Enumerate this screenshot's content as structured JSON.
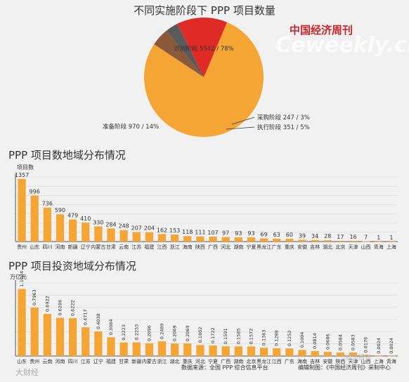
{
  "watermark": {
    "publisher": "中国经济周刊",
    "domain": "Ceweekly.cn",
    "bottom_left": "大财经",
    "mid_right": "经济周刊"
  },
  "colors": {
    "bar": "#f5a534",
    "grid": "#dcdcdc",
    "axis": "#555555",
    "pie_main": "#f5a534",
    "pie_prep": "#e02a26",
    "pie_purchase": "#5a5a5a",
    "pie_exec": "#8a5a3a"
  },
  "chart_data": [
    {
      "type": "pie",
      "title": "不同实施阶段下 PPP 项目数量",
      "slices": [
        {
          "label": "识别阶段",
          "value": 5542,
          "pct": "78%",
          "text": "识别阶段 5542 / 78%"
        },
        {
          "label": "准备阶段",
          "value": 970,
          "pct": "14%",
          "text": "准备阶段 970 / 14%"
        },
        {
          "label": "执行阶段",
          "value": 351,
          "pct": "5%",
          "text": "执行阶段 351 / 5%"
        },
        {
          "label": "采购阶段",
          "value": 247,
          "pct": "3%",
          "text": "采购阶段 247 / 3%"
        }
      ]
    },
    {
      "type": "bar",
      "title": "PPP 项目数地域分布情况",
      "ylabel": "项目数",
      "ylim": [
        0,
        1400
      ],
      "categories": [
        "贵州",
        "山东",
        "四川",
        "河南",
        "新疆",
        "辽宁",
        "内蒙古",
        "甘肃",
        "云南",
        "江苏",
        "福建",
        "江西",
        "浙江",
        "海南",
        "陕西",
        "广西",
        "河北",
        "湖南",
        "宁夏",
        "黑龙江",
        "广东",
        "重庆",
        "安徽",
        "吉林",
        "湖北",
        "北京",
        "天津",
        "山西",
        "青海",
        "上海"
      ],
      "values": [
        1357,
        996,
        736,
        590,
        479,
        410,
        330,
        284,
        248,
        207,
        204,
        162,
        153,
        118,
        111,
        107,
        97,
        93,
        93,
        69,
        63,
        60,
        39,
        34,
        28,
        17,
        16,
        7,
        1,
        1
      ]
    },
    {
      "type": "bar",
      "title": "PPP 项目投资地域分布情况",
      "ylabel": "万亿元",
      "ylim": [
        0,
        1.2
      ],
      "categories": [
        "山东",
        "贵州",
        "云南",
        "河南",
        "四川",
        "江苏",
        "辽宁",
        "福建",
        "甘肃",
        "新疆",
        "内蒙古",
        "浙江",
        "湖北",
        "重庆",
        "河北",
        "宁夏",
        "广西",
        "湖南",
        "北京",
        "黑龙江",
        "江西",
        "广东",
        "海南",
        "吉林",
        "安徽",
        "陕西",
        "天津",
        "山西",
        "上海",
        "青海"
      ],
      "values": [
        1.1024,
        0.7963,
        0.6922,
        0.6286,
        0.6222,
        0.4717,
        0.4038,
        0.3084,
        0.2223,
        0.2253,
        0.2096,
        0.2409,
        0.2069,
        0.2069,
        0.1802,
        0.1722,
        0.1591,
        0.1585,
        0.1572,
        0.1363,
        0.1288,
        0.1252,
        0.1004,
        0.0814,
        0.0686,
        0.0584,
        0.0583,
        0.0176,
        0.0024,
        0.0024
      ],
      "labels": [
        "1.1024",
        "0.7963",
        "0.6922",
        "0.6286",
        "0.6222",
        "0.4717",
        "0.4038",
        "0.3084",
        "0.2223",
        "0.2253",
        "0.2096",
        "0.2409",
        "0.2069",
        "0.2069",
        "0.1802",
        "0.1722",
        "0.1591",
        "0.1585",
        "0.1572",
        "0.1363",
        "0.1288",
        "0.1252",
        "0.1004",
        "0.0814",
        "0.0686",
        "0.0584",
        "0.0583",
        "0.0176",
        "0.0024",
        "0.0024"
      ]
    }
  ],
  "footer": {
    "source": "数据来源：全国 PPP 综合信息平台",
    "editor": "编辑制图：《中国经济周刊》采制中心"
  }
}
